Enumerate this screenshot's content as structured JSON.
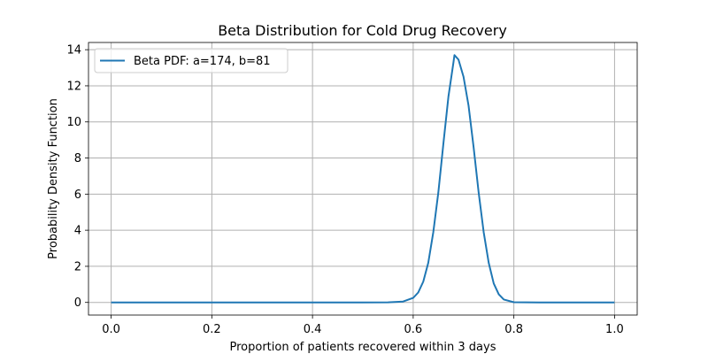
{
  "chart_data": {
    "type": "line",
    "title": "Beta Distribution for Cold Drug Recovery",
    "xlabel": "Proportion of patients recovered within 3 days",
    "ylabel": "Probability Density Function",
    "xlim": [
      -0.045,
      1.045
    ],
    "ylim": [
      -0.7,
      14.4
    ],
    "xticks": [
      0.0,
      0.2,
      0.4,
      0.6,
      0.8,
      1.0
    ],
    "xtick_labels": [
      "0.0",
      "0.2",
      "0.4",
      "0.6",
      "0.8",
      "1.0"
    ],
    "yticks": [
      0,
      2,
      4,
      6,
      8,
      10,
      12,
      14
    ],
    "ytick_labels": [
      "0",
      "2",
      "4",
      "6",
      "8",
      "10",
      "12",
      "14"
    ],
    "grid": true,
    "legend_position": "top-left",
    "series": [
      {
        "name": "Beta PDF: a=174, b=81",
        "color": "#1f77b4",
        "distribution": {
          "family": "beta",
          "a": 174,
          "b": 81
        },
        "x": [
          0.0,
          0.1,
          0.2,
          0.3,
          0.4,
          0.5,
          0.55,
          0.58,
          0.6,
          0.61,
          0.62,
          0.63,
          0.64,
          0.65,
          0.66,
          0.67,
          0.68,
          0.682,
          0.69,
          0.7,
          0.71,
          0.72,
          0.73,
          0.74,
          0.75,
          0.76,
          0.77,
          0.78,
          0.8,
          0.85,
          0.9,
          1.0
        ],
        "y": [
          0,
          0,
          0,
          0,
          0,
          0,
          0.002,
          0.05,
          0.25,
          0.55,
          1.15,
          2.2,
          3.9,
          6.1,
          8.8,
          11.4,
          13.3,
          13.7,
          13.45,
          12.5,
          10.9,
          8.6,
          6.1,
          3.9,
          2.2,
          1.05,
          0.45,
          0.16,
          0.01,
          0,
          0,
          0
        ]
      }
    ]
  }
}
